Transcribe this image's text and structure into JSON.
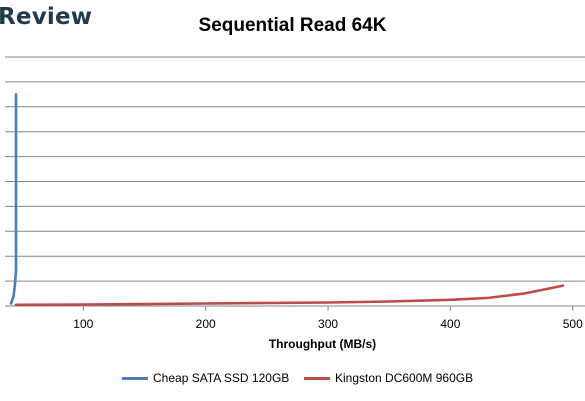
{
  "watermark_text": "Review",
  "chart_data": {
    "type": "line",
    "title": "Sequential Read 64K",
    "xlabel": "Throughput (MB/s)",
    "ylabel": "",
    "xlim": [
      36,
      510
    ],
    "ylim": [
      0,
      10
    ],
    "x_ticks": [
      100,
      200,
      300,
      400,
      500
    ],
    "y_gridlines": [
      1,
      2,
      3,
      4,
      5,
      6,
      7,
      8,
      9,
      10
    ],
    "grid": true,
    "legend_position": "bottom",
    "series": [
      {
        "name": "Cheap SATA SSD 120GB",
        "color": "#4a7ebb",
        "x": [
          41,
          43,
          44,
          45,
          45,
          45,
          45
        ],
        "y": [
          0.1,
          0.4,
          0.8,
          1.4,
          3.5,
          6.5,
          8.5
        ]
      },
      {
        "name": "Kingston DC600M 960GB",
        "color": "#be4b48",
        "x": [
          45,
          100,
          200,
          300,
          350,
          400,
          430,
          460,
          492
        ],
        "y": [
          0.05,
          0.06,
          0.1,
          0.14,
          0.18,
          0.25,
          0.32,
          0.5,
          0.82
        ]
      }
    ]
  }
}
